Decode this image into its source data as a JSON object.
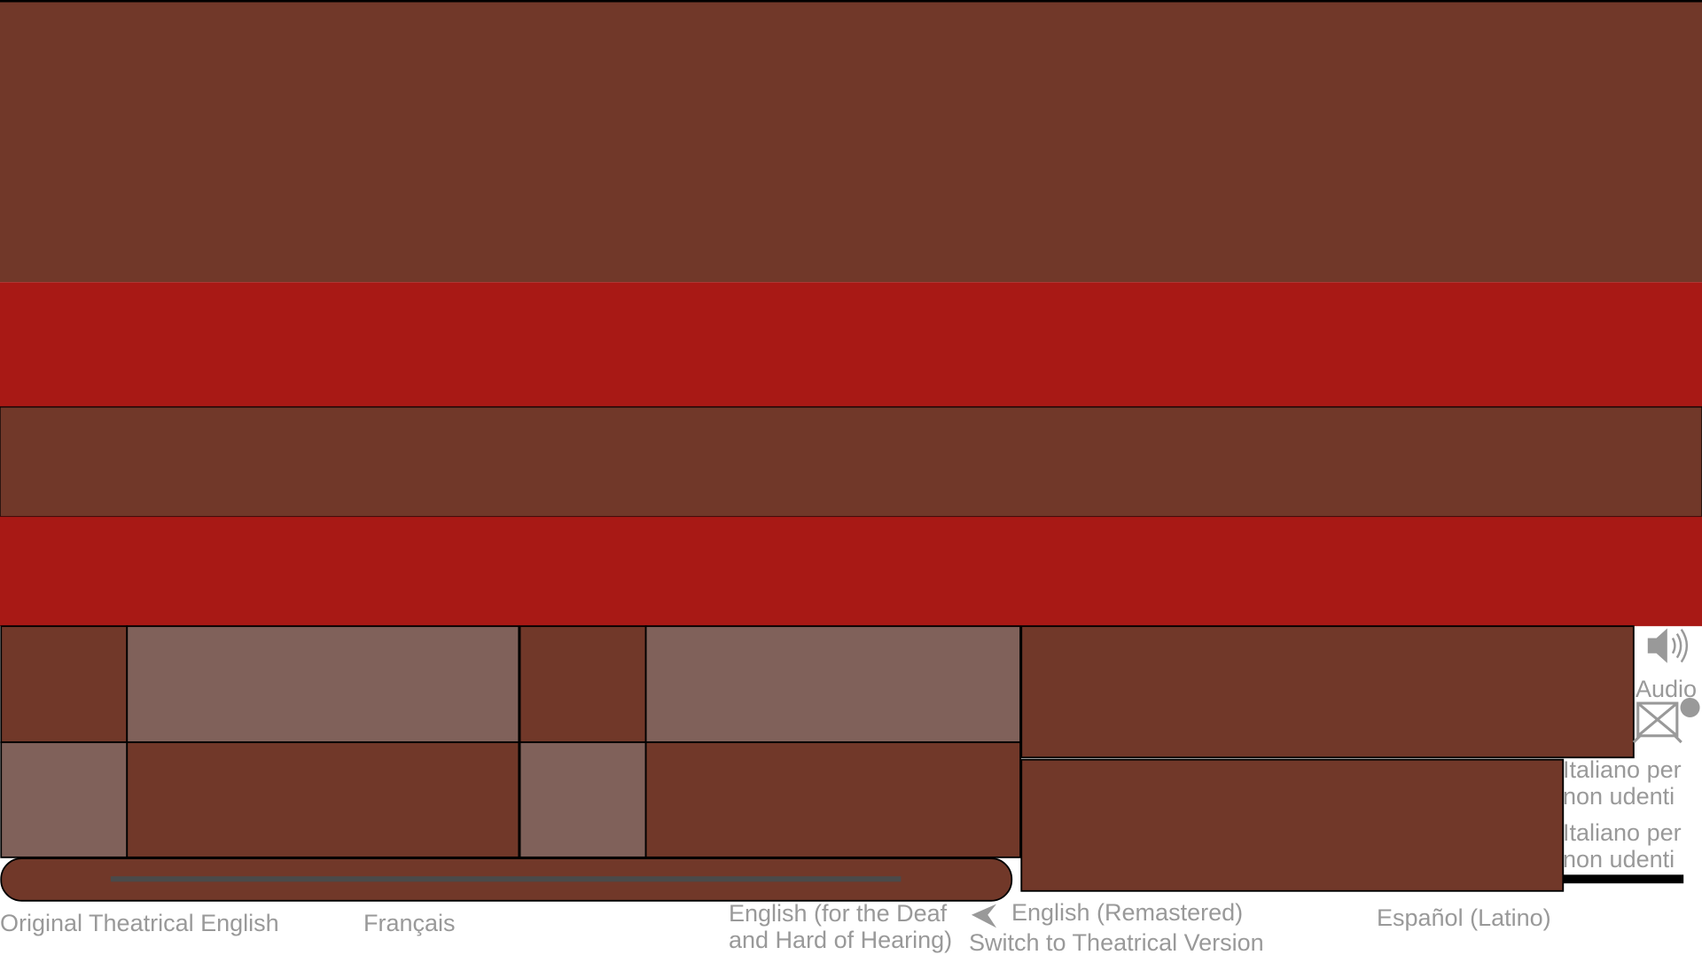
{
  "audio_label": "Audio",
  "audio_tracks": [
    "Original Theatrical English",
    "Français",
    "English (for the Deaf and Hard of Hearing)",
    "English (Remastered)",
    "Español (Latino)"
  ],
  "subtitles": [
    "Italiano per non udenti",
    "Italiano per non udenti"
  ],
  "switch_version": "Switch to Theatrical Version"
}
